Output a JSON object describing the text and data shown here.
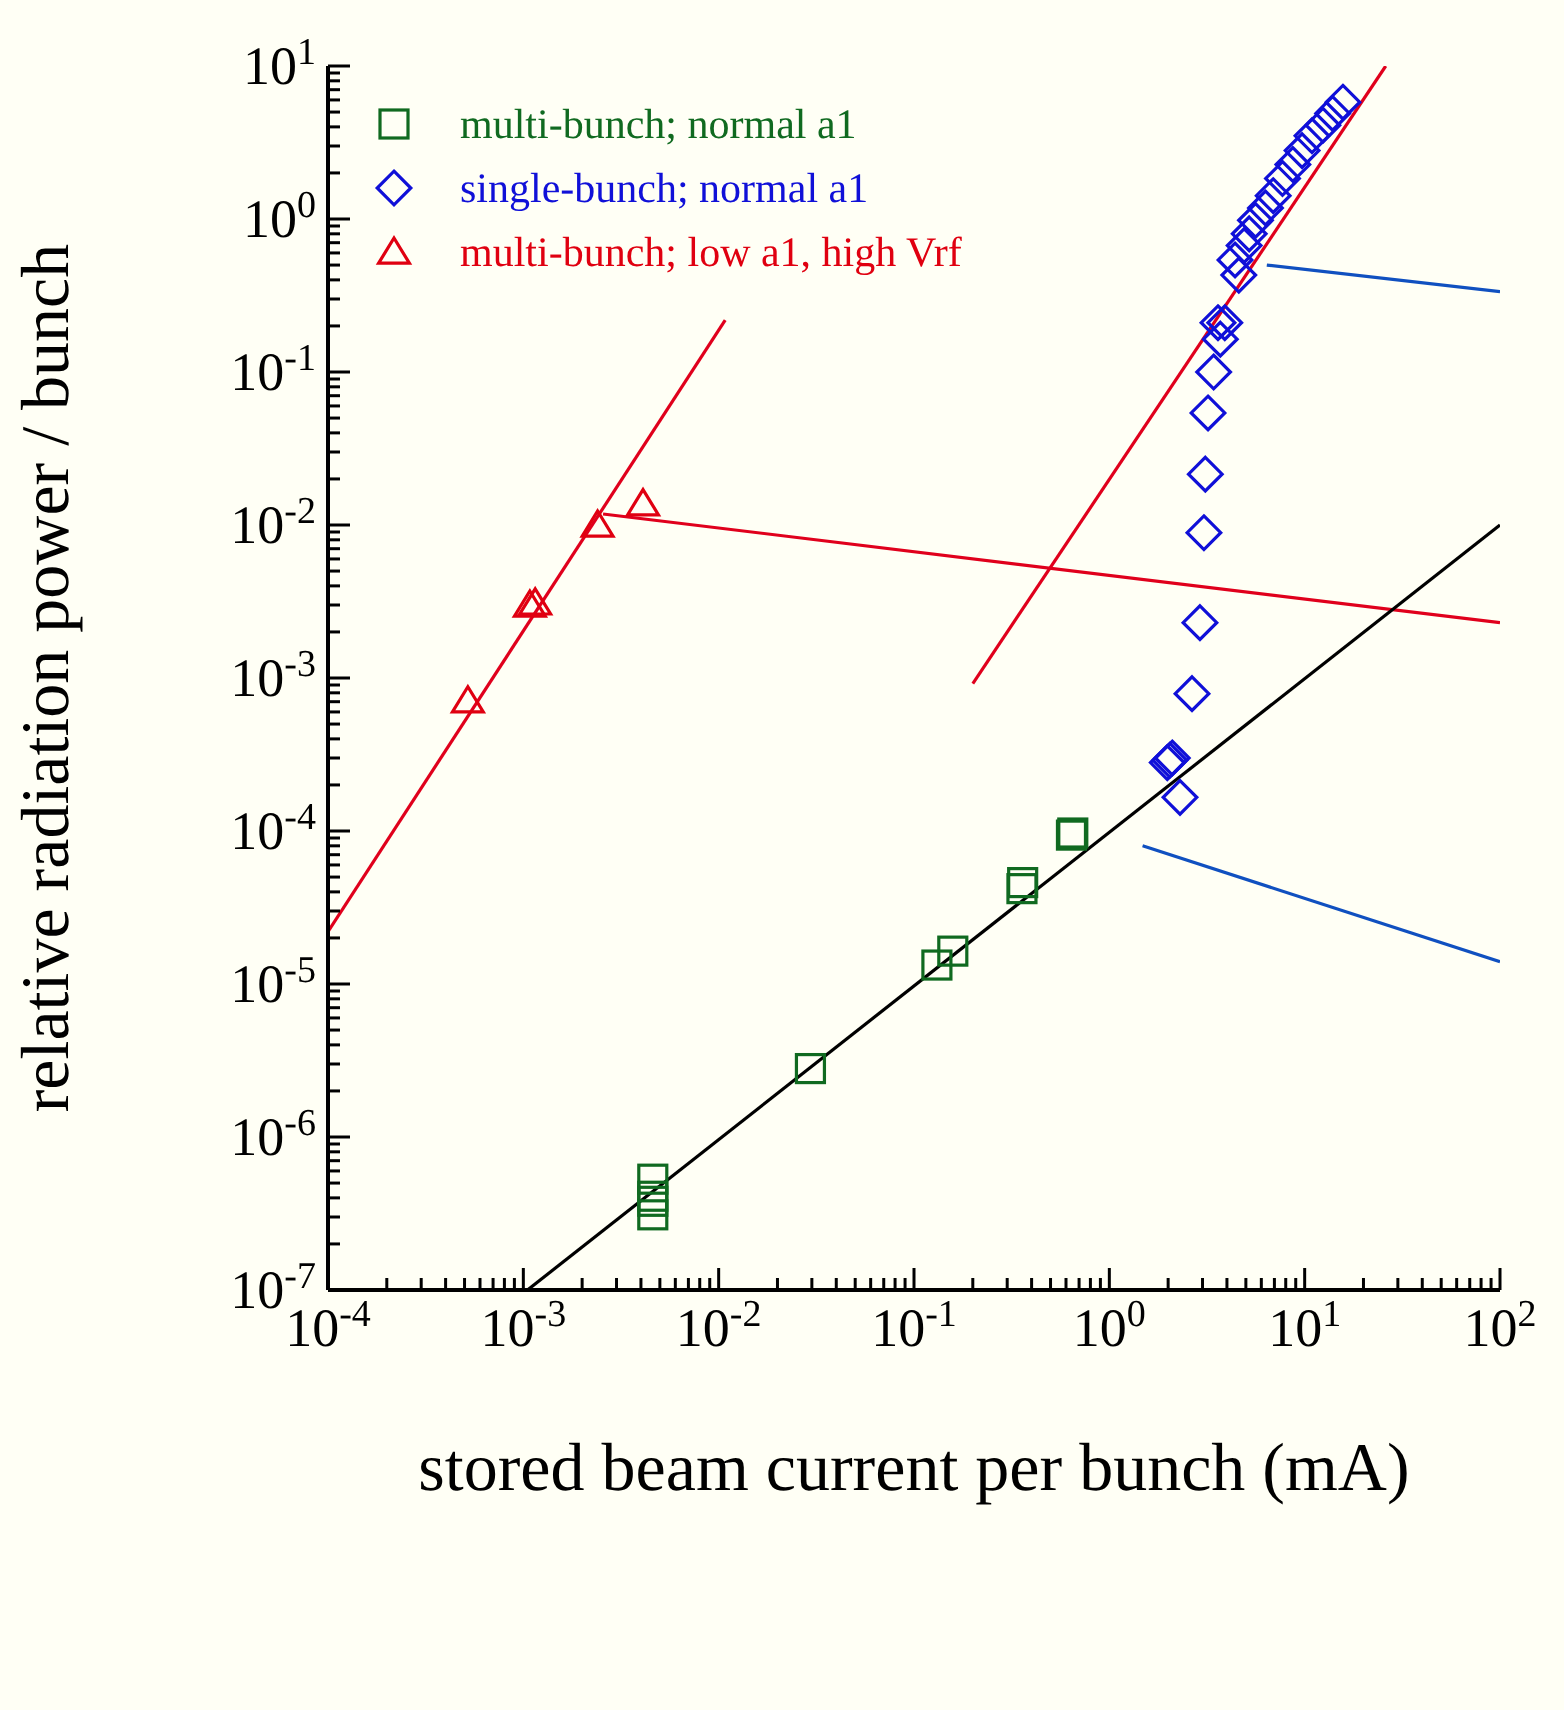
{
  "chart_data": {
    "type": "scatter",
    "xlabel": "stored beam current per bunch (mA)",
    "ylabel": "relative radiation power / bunch",
    "log": "xy",
    "legend": "top left",
    "xlim": [
      0.0001,
      100
    ],
    "ylim": [
      1e-07,
      10
    ],
    "xticks": [
      {
        "value": 0.0001,
        "label": "10$^{-4}$"
      },
      {
        "value": 0.0002,
        "label": null
      },
      {
        "value": 0.0003,
        "label": null
      },
      {
        "value": 0.0004,
        "label": null
      },
      {
        "value": 0.0005,
        "label": null
      },
      {
        "value": 0.0006,
        "label": null
      },
      {
        "value": 0.0007,
        "label": null
      },
      {
        "value": 0.0008,
        "label": null
      },
      {
        "value": 0.0009,
        "label": null
      },
      {
        "value": 0.001,
        "label": "10$^{-3}$"
      },
      {
        "value": 0.002,
        "label": null
      },
      {
        "value": 0.003,
        "label": null
      },
      {
        "value": 0.004,
        "label": null
      },
      {
        "value": 0.005,
        "label": null
      },
      {
        "value": 0.006,
        "label": null
      },
      {
        "value": 0.007,
        "label": null
      },
      {
        "value": 0.008,
        "label": null
      },
      {
        "value": 0.009,
        "label": null
      },
      {
        "value": 0.01,
        "label": "10$^{-2}$"
      },
      {
        "value": 0.02,
        "label": null
      },
      {
        "value": 0.03,
        "label": null
      },
      {
        "value": 0.04,
        "label": null
      },
      {
        "value": 0.05,
        "label": null
      },
      {
        "value": 0.06,
        "label": null
      },
      {
        "value": 0.07,
        "label": null
      },
      {
        "value": 0.08,
        "label": null
      },
      {
        "value": 0.09,
        "label": null
      },
      {
        "value": 0.1,
        "label": "10$^{-1}$"
      },
      {
        "value": 0.2,
        "label": null
      },
      {
        "value": 0.3,
        "label": null
      },
      {
        "value": 0.4,
        "label": null
      },
      {
        "value": 0.5,
        "label": null
      },
      {
        "value": 0.6,
        "label": null
      },
      {
        "value": 0.7,
        "label": null
      },
      {
        "value": 0.8,
        "label": null
      },
      {
        "value": 0.9,
        "label": null
      },
      {
        "value": 1,
        "label": "10$^{0}$"
      },
      {
        "value": 2,
        "label": null
      },
      {
        "value": 3,
        "label": null
      },
      {
        "value": 4,
        "label": null
      },
      {
        "value": 5,
        "label": null
      },
      {
        "value": 6,
        "label": null
      },
      {
        "value": 7,
        "label": null
      },
      {
        "value": 8,
        "label": null
      },
      {
        "value": 9,
        "label": null
      },
      {
        "value": 10,
        "label": "10$^{1}$"
      },
      {
        "value": 20,
        "label": null
      },
      {
        "value": 30,
        "label": null
      },
      {
        "value": 40,
        "label": null
      },
      {
        "value": 50,
        "label": null
      },
      {
        "value": 60,
        "label": null
      },
      {
        "value": 70,
        "label": null
      },
      {
        "value": 80,
        "label": null
      },
      {
        "value": 90,
        "label": null
      },
      {
        "value": 100,
        "label": "10$^{2}$"
      }
    ],
    "yticks": [
      {
        "value": 1e-07,
        "label": "10$^{-7}$"
      },
      {
        "value": 2e-07,
        "label": null
      },
      {
        "value": 3e-07,
        "label": null
      },
      {
        "value": 4e-07,
        "label": null
      },
      {
        "value": 5e-07,
        "label": null
      },
      {
        "value": 6e-07,
        "label": null
      },
      {
        "value": 7e-07,
        "label": null
      },
      {
        "value": 8e-07,
        "label": null
      },
      {
        "value": 9e-07,
        "label": null
      },
      {
        "value": 1e-06,
        "label": "10$^{-6}$"
      },
      {
        "value": 2e-06,
        "label": null
      },
      {
        "value": 3e-06,
        "label": null
      },
      {
        "value": 4e-06,
        "label": null
      },
      {
        "value": 5e-06,
        "label": null
      },
      {
        "value": 6e-06,
        "label": null
      },
      {
        "value": 7e-06,
        "label": null
      },
      {
        "value": 8e-06,
        "label": null
      },
      {
        "value": 9e-06,
        "label": null
      },
      {
        "value": 1e-05,
        "label": "10$^{-5}$"
      },
      {
        "value": 2e-05,
        "label": null
      },
      {
        "value": 3e-05,
        "label": null
      },
      {
        "value": 4e-05,
        "label": null
      },
      {
        "value": 5e-05,
        "label": null
      },
      {
        "value": 6e-05,
        "label": null
      },
      {
        "value": 7e-05,
        "label": null
      },
      {
        "value": 8e-05,
        "label": null
      },
      {
        "value": 9e-05,
        "label": null
      },
      {
        "value": 0.0001,
        "label": "10$^{-4}$"
      },
      {
        "value": 0.0002,
        "label": null
      },
      {
        "value": 0.0003,
        "label": null
      },
      {
        "value": 0.0004,
        "label": null
      },
      {
        "value": 0.0005,
        "label": null
      },
      {
        "value": 0.0006,
        "label": null
      },
      {
        "value": 0.0007,
        "label": null
      },
      {
        "value": 0.0008,
        "label": null
      },
      {
        "value": 0.0009,
        "label": null
      },
      {
        "value": 0.001,
        "label": "10$^{-3}$"
      },
      {
        "value": 0.002,
        "label": null
      },
      {
        "value": 0.003,
        "label": null
      },
      {
        "value": 0.004,
        "label": null
      },
      {
        "value": 0.005,
        "label": null
      },
      {
        "value": 0.006,
        "label": null
      },
      {
        "value": 0.007,
        "label": null
      },
      {
        "value": 0.008,
        "label": null
      },
      {
        "value": 0.009,
        "label": null
      },
      {
        "value": 0.01,
        "label": "10$^{-2}$"
      },
      {
        "value": 0.02,
        "label": null
      },
      {
        "value": 0.03,
        "label": null
      },
      {
        "value": 0.04,
        "label": null
      },
      {
        "value": 0.05,
        "label": null
      },
      {
        "value": 0.06,
        "label": null
      },
      {
        "value": 0.07,
        "label": null
      },
      {
        "value": 0.08,
        "label": null
      },
      {
        "value": 0.09,
        "label": null
      },
      {
        "value": 0.1,
        "label": "10$^{-1}$"
      },
      {
        "value": 0.2,
        "label": null
      },
      {
        "value": 0.3,
        "label": null
      },
      {
        "value": 0.4,
        "label": null
      },
      {
        "value": 0.5,
        "label": null
      },
      {
        "value": 0.6,
        "label": null
      },
      {
        "value": 0.7,
        "label": null
      },
      {
        "value": 0.8,
        "label": null
      },
      {
        "value": 0.9,
        "label": null
      },
      {
        "value": 1,
        "label": "10$^{0}$"
      },
      {
        "value": 2,
        "label": null
      },
      {
        "value": 3,
        "label": null
      },
      {
        "value": 4,
        "label": null
      },
      {
        "value": 5,
        "label": null
      },
      {
        "value": 6,
        "label": null
      },
      {
        "value": 7,
        "label": null
      },
      {
        "value": 8,
        "label": null
      },
      {
        "value": 9,
        "label": null
      },
      {
        "value": 10,
        "label": "10$^{1}$"
      }
    ],
    "series": [
      {
        "type": "line",
        "color": "#e0001c",
        "x": [
          0.0001,
          0.0108
        ],
        "values": [
          2.2e-05,
          0.218
        ]
      },
      {
        "type": "line",
        "color": "#e0001c",
        "x": [
          0.2,
          26
        ],
        "values": [
          0.00092,
          10
        ]
      },
      {
        "type": "line",
        "color": "#e0001c",
        "x": [
          0.00256,
          100
        ],
        "values": [
          0.0118,
          0.0023
        ]
      },
      {
        "type": "line",
        "color": "#000000",
        "x": [
          0.00105,
          100
        ],
        "values": [
          1e-07,
          0.01
        ]
      },
      {
        "type": "line",
        "color": "#1050c0",
        "x": [
          6.4,
          100
        ],
        "values": [
          0.5,
          0.335
        ]
      },
      {
        "type": "line",
        "color": "#1050c0",
        "x": [
          1.48,
          100
        ],
        "values": [
          8e-05,
          1.4e-05
        ]
      },
      {
        "type": "scatter",
        "name": "multi-bunch; normal a1",
        "color": "#106a20",
        "marker": "square",
        "x": [
          0.0046,
          0.0046,
          0.0046,
          0.0046,
          0.0295,
          0.131,
          0.158,
          0.357,
          0.36,
          0.64,
          0.65
        ],
        "values": [
          5.3e-07,
          4.1e-07,
          3.8e-07,
          3.1e-07,
          2.8e-06,
          1.33e-05,
          1.64e-05,
          4.2e-05,
          4.6e-05,
          9.4e-05,
          9.7e-05
        ]
      },
      {
        "type": "scatter",
        "name": "single-bunch; normal a1",
        "color": "#1010d8",
        "marker": "diamond",
        "x": [
          2.3,
          1.98,
          2.04,
          2.1,
          2.65,
          2.91,
          3.05,
          3.1,
          3.2,
          3.42,
          3.7,
          3.6,
          3.9,
          4.6,
          4.4,
          4.9,
          5.2,
          5.6,
          6.3,
          6.9,
          7.7,
          8.7,
          9.7,
          10.9,
          12.4,
          13.9,
          15.7
        ],
        "values": [
          0.000166,
          0.00028,
          0.00029,
          0.0003,
          0.00079,
          0.0023,
          0.0089,
          0.0215,
          0.054,
          0.1,
          0.164,
          0.21,
          0.21,
          0.43,
          0.54,
          0.67,
          0.8,
          0.98,
          1.18,
          1.42,
          1.84,
          2.27,
          2.8,
          3.5,
          4.1,
          4.9,
          5.8
        ]
      },
      {
        "type": "scatter",
        "name": "multi-bunch; low a1, high Vrf",
        "color": "#e00010",
        "marker": "triangle",
        "x": [
          0.00052,
          0.00108,
          0.00115,
          0.0024,
          0.0041
        ],
        "values": [
          0.00071,
          0.003,
          0.0031,
          0.01,
          0.0138
        ]
      }
    ]
  }
}
